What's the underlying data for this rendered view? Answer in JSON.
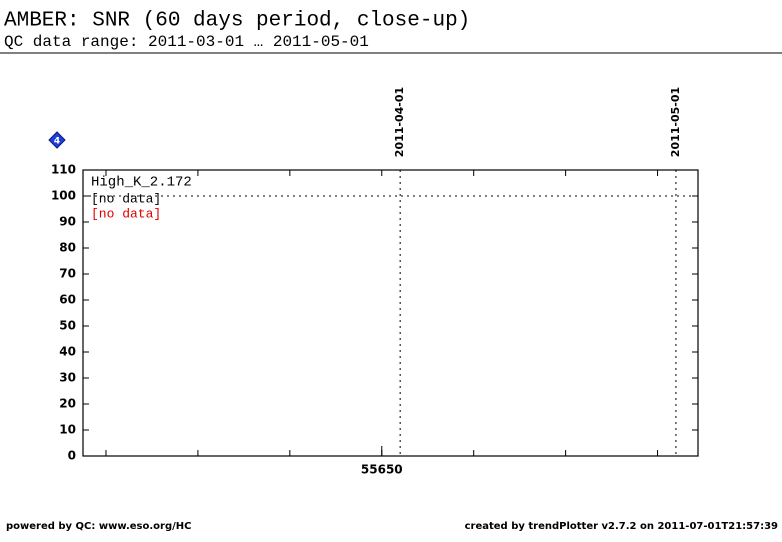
{
  "header": {
    "title": "AMBER: SNR (60 days period, close-up)",
    "subtitle": "QC data range: 2011-03-01 … 2011-05-01"
  },
  "chart_data": {
    "type": "line",
    "badge": "4",
    "label": "High_K_2.172",
    "x": [],
    "series": [
      {
        "name": "[no data]",
        "color": "#000000",
        "values": []
      },
      {
        "name": "[no data]",
        "color": "#e00000",
        "values": []
      }
    ],
    "xlim": [
      55617.5,
      55684.4
    ],
    "xticks": [
      55650
    ],
    "xminor": [
      55620,
      55630,
      55640,
      55650,
      55660,
      55670,
      55680
    ],
    "date_markers": [
      {
        "x": 55652,
        "label": "2011-04-01"
      },
      {
        "x": 55682,
        "label": "2011-05-01"
      }
    ],
    "reference_line": 100,
    "ylim": [
      0,
      110
    ],
    "yticks": [
      0,
      10,
      20,
      30,
      40,
      50,
      60,
      70,
      80,
      90,
      100,
      110
    ]
  },
  "footer": {
    "left": "powered by QC: www.eso.org/HC",
    "right": "created by trendPlotter v2.7.2 on 2011-07-01T21:57:39"
  }
}
